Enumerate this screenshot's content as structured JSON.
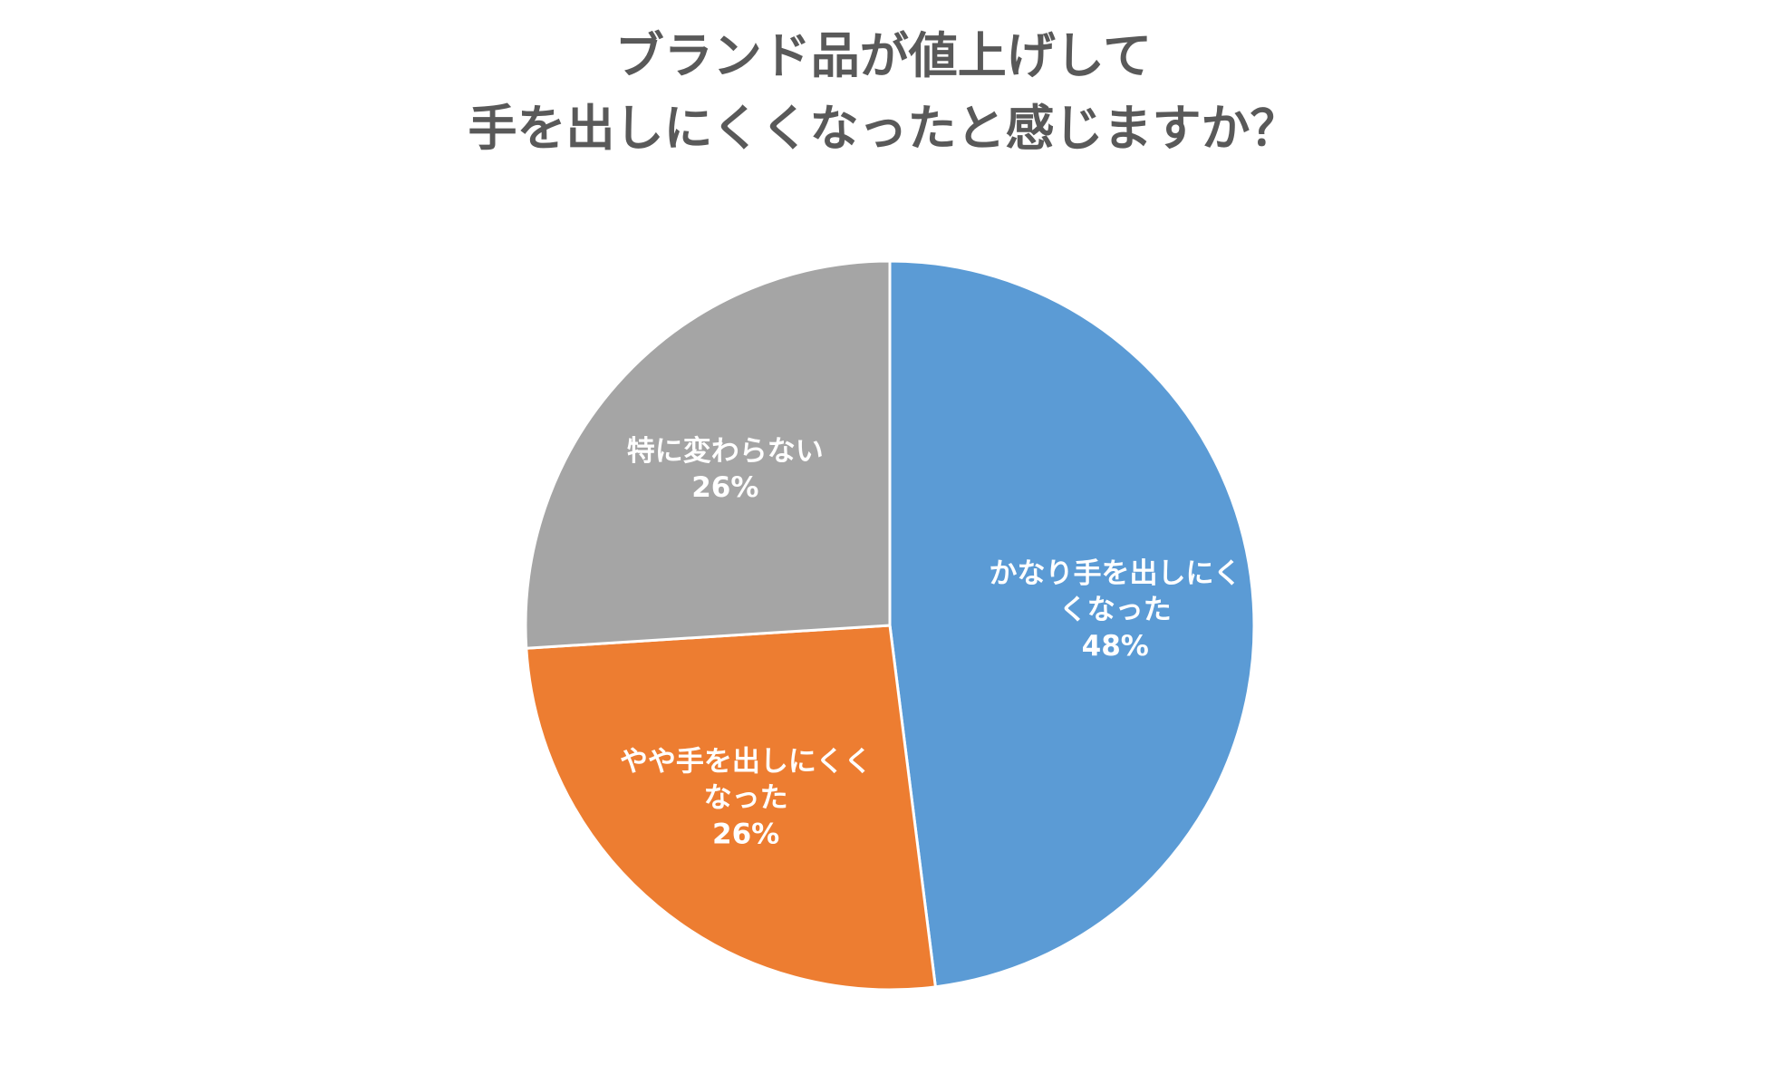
{
  "chart_data": {
    "type": "pie",
    "title": [
      "ブランド品が値上げして",
      "手を出しにくくなったと感じますか？"
    ],
    "slices": [
      {
        "label": [
          "かなり手を出しにく",
          "くなった"
        ],
        "value": 48,
        "value_label": "48%",
        "color": "#5B9BD5"
      },
      {
        "label": [
          "やや手を出しにくく",
          "なった"
        ],
        "value": 26,
        "value_label": "26%",
        "color": "#ED7D31"
      },
      {
        "label": [
          "特に変わらない"
        ],
        "value": 26,
        "value_label": "26%",
        "color": "#A5A5A5"
      }
    ],
    "start_angle_deg": 0,
    "direction": "clockwise",
    "legend": "none"
  }
}
